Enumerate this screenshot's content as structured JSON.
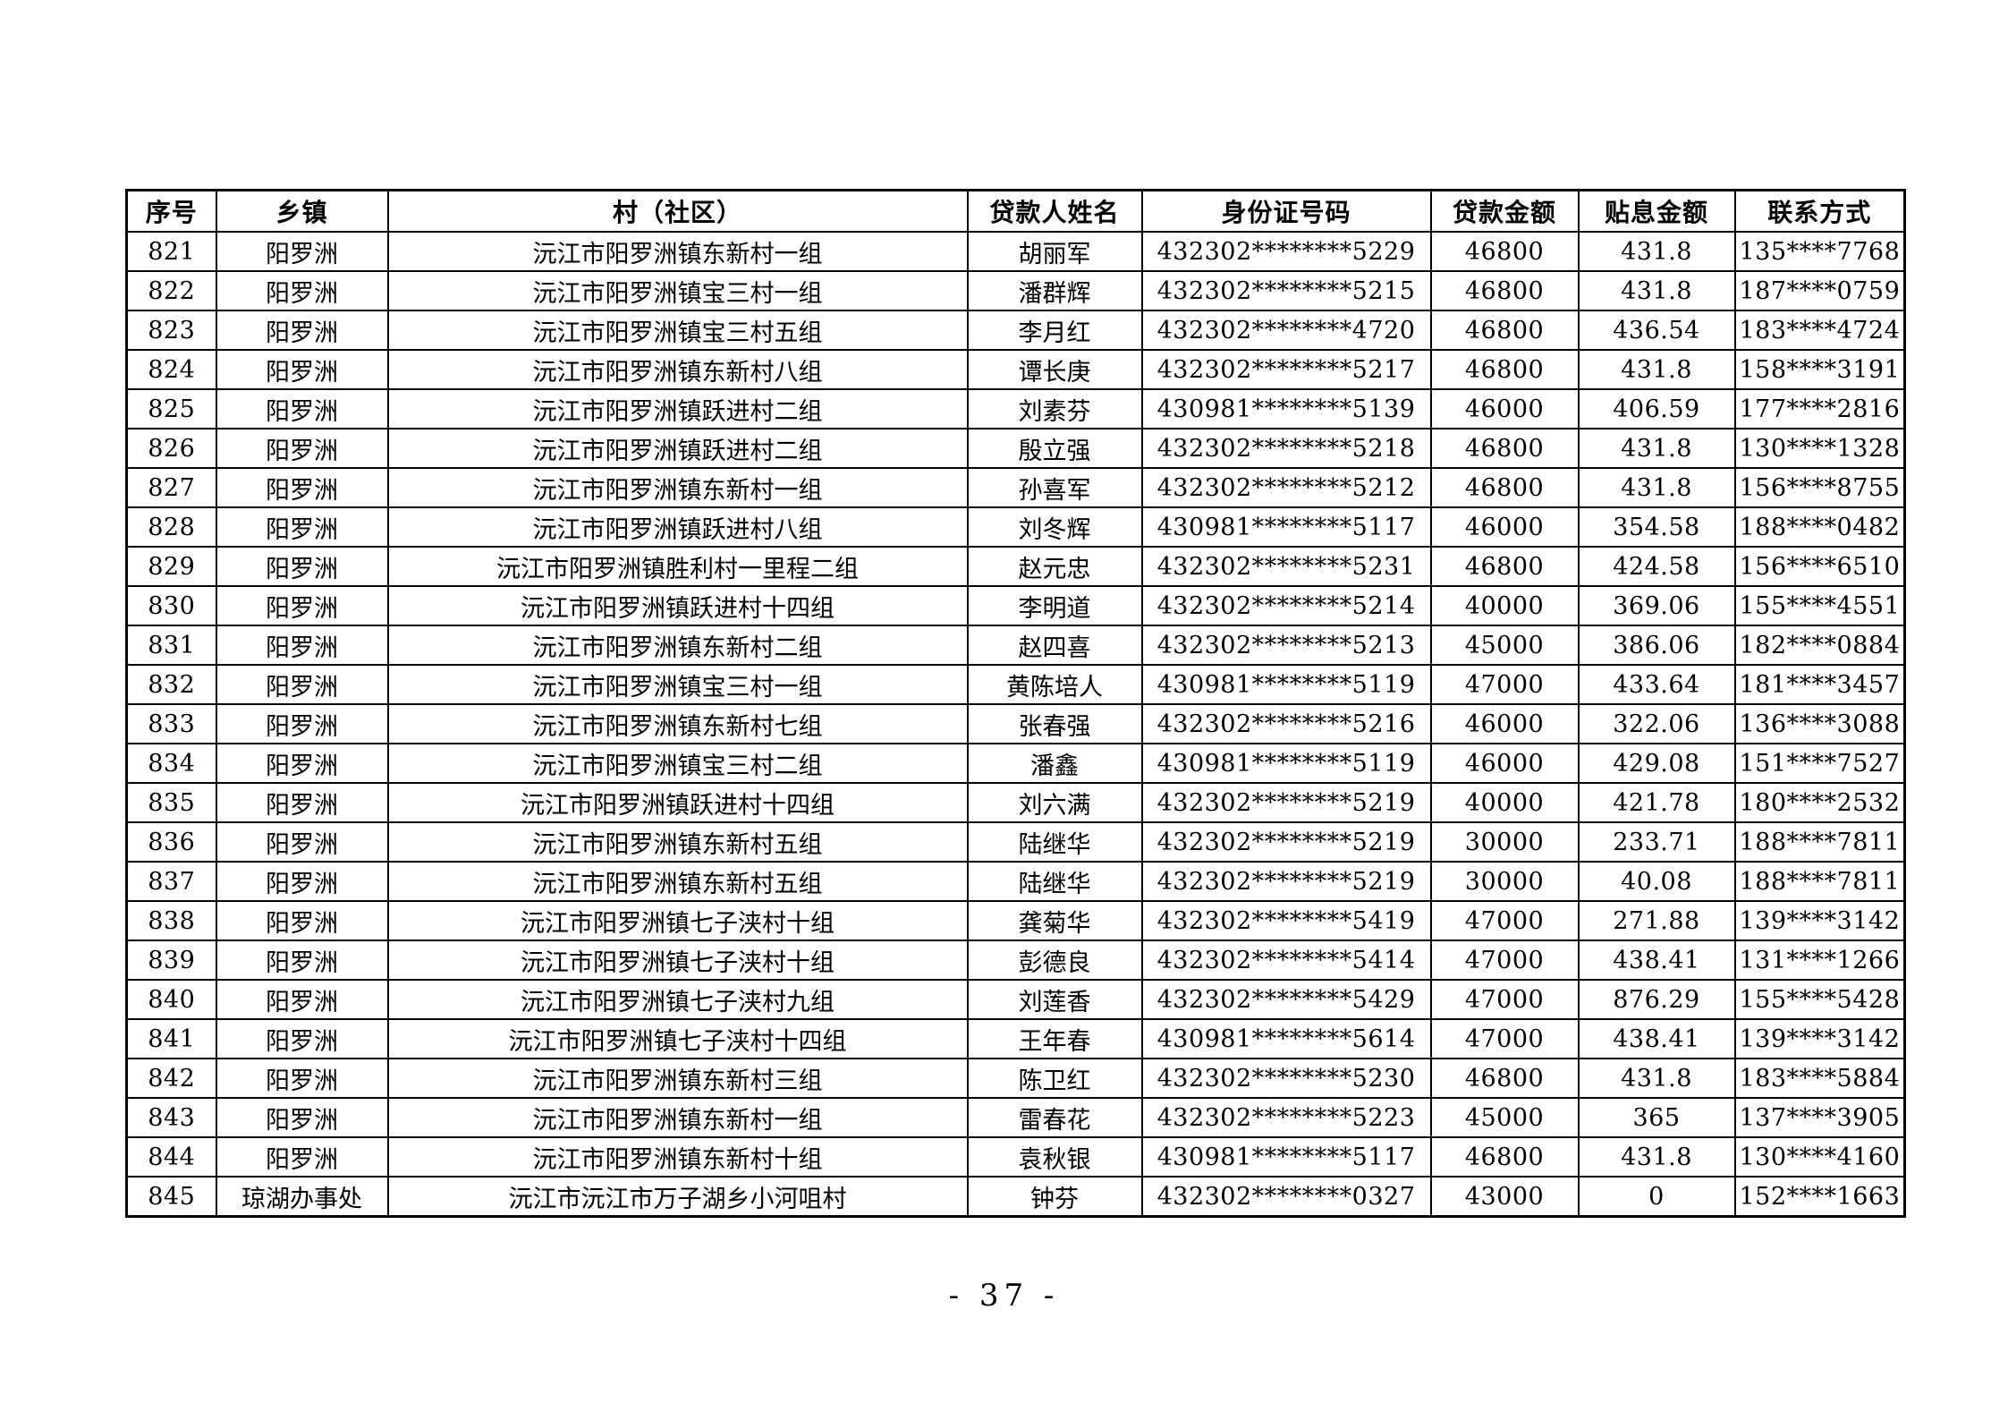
{
  "page": {
    "footer_page_number": "- 37 -"
  },
  "table": {
    "columns": [
      "序号",
      "乡镇",
      "村（社区）",
      "贷款人姓名",
      "身份证号码",
      "贷款金额",
      "贴息金额",
      "联系方式"
    ],
    "rows": [
      [
        "821",
        "阳罗洲",
        "沅江市阳罗洲镇东新村一组",
        "胡丽军",
        "432302********5229",
        "46800",
        "431.8",
        "135****7768"
      ],
      [
        "822",
        "阳罗洲",
        "沅江市阳罗洲镇宝三村一组",
        "潘群辉",
        "432302********5215",
        "46800",
        "431.8",
        "187****0759"
      ],
      [
        "823",
        "阳罗洲",
        "沅江市阳罗洲镇宝三村五组",
        "李月红",
        "432302********4720",
        "46800",
        "436.54",
        "183****4724"
      ],
      [
        "824",
        "阳罗洲",
        "沅江市阳罗洲镇东新村八组",
        "谭长庚",
        "432302********5217",
        "46800",
        "431.8",
        "158****3191"
      ],
      [
        "825",
        "阳罗洲",
        "沅江市阳罗洲镇跃进村二组",
        "刘素芬",
        "430981********5139",
        "46000",
        "406.59",
        "177****2816"
      ],
      [
        "826",
        "阳罗洲",
        "沅江市阳罗洲镇跃进村二组",
        "殷立强",
        "432302********5218",
        "46800",
        "431.8",
        "130****1328"
      ],
      [
        "827",
        "阳罗洲",
        "沅江市阳罗洲镇东新村一组",
        "孙喜军",
        "432302********5212",
        "46800",
        "431.8",
        "156****8755"
      ],
      [
        "828",
        "阳罗洲",
        "沅江市阳罗洲镇跃进村八组",
        "刘冬辉",
        "430981********5117",
        "46000",
        "354.58",
        "188****0482"
      ],
      [
        "829",
        "阳罗洲",
        "沅江市阳罗洲镇胜利村一里程二组",
        "赵元忠",
        "432302********5231",
        "46800",
        "424.58",
        "156****6510"
      ],
      [
        "830",
        "阳罗洲",
        "沅江市阳罗洲镇跃进村十四组",
        "李明道",
        "432302********5214",
        "40000",
        "369.06",
        "155****4551"
      ],
      [
        "831",
        "阳罗洲",
        "沅江市阳罗洲镇东新村二组",
        "赵四喜",
        "432302********5213",
        "45000",
        "386.06",
        "182****0884"
      ],
      [
        "832",
        "阳罗洲",
        "沅江市阳罗洲镇宝三村一组",
        "黄陈培人",
        "430981********5119",
        "47000",
        "433.64",
        "181****3457"
      ],
      [
        "833",
        "阳罗洲",
        "沅江市阳罗洲镇东新村七组",
        "张春强",
        "432302********5216",
        "46000",
        "322.06",
        "136****3088"
      ],
      [
        "834",
        "阳罗洲",
        "沅江市阳罗洲镇宝三村二组",
        "潘鑫",
        "430981********5119",
        "46000",
        "429.08",
        "151****7527"
      ],
      [
        "835",
        "阳罗洲",
        "沅江市阳罗洲镇跃进村十四组",
        "刘六满",
        "432302********5219",
        "40000",
        "421.78",
        "180****2532"
      ],
      [
        "836",
        "阳罗洲",
        "沅江市阳罗洲镇东新村五组",
        "陆继华",
        "432302********5219",
        "30000",
        "233.71",
        "188****7811"
      ],
      [
        "837",
        "阳罗洲",
        "沅江市阳罗洲镇东新村五组",
        "陆继华",
        "432302********5219",
        "30000",
        "40.08",
        "188****7811"
      ],
      [
        "838",
        "阳罗洲",
        "沅江市阳罗洲镇七子浃村十组",
        "龚菊华",
        "432302********5419",
        "47000",
        "271.88",
        "139****3142"
      ],
      [
        "839",
        "阳罗洲",
        "沅江市阳罗洲镇七子浃村十组",
        "彭德良",
        "432302********5414",
        "47000",
        "438.41",
        "131****1266"
      ],
      [
        "840",
        "阳罗洲",
        "沅江市阳罗洲镇七子浃村九组",
        "刘莲香",
        "432302********5429",
        "47000",
        "876.29",
        "155****5428"
      ],
      [
        "841",
        "阳罗洲",
        "沅江市阳罗洲镇七子浃村十四组",
        "王年春",
        "430981********5614",
        "47000",
        "438.41",
        "139****3142"
      ],
      [
        "842",
        "阳罗洲",
        "沅江市阳罗洲镇东新村三组",
        "陈卫红",
        "432302********5230",
        "46800",
        "431.8",
        "183****5884"
      ],
      [
        "843",
        "阳罗洲",
        "沅江市阳罗洲镇东新村一组",
        "雷春花",
        "432302********5223",
        "45000",
        "365",
        "137****3905"
      ],
      [
        "844",
        "阳罗洲",
        "沅江市阳罗洲镇东新村十组",
        "袁秋银",
        "430981********5117",
        "46800",
        "431.8",
        "130****4160"
      ],
      [
        "845",
        "琼湖办事处",
        "沅江市沅江市万子湖乡小河咀村",
        "钟芬",
        "432302********0327",
        "43000",
        "0",
        "152****1663"
      ]
    ]
  }
}
